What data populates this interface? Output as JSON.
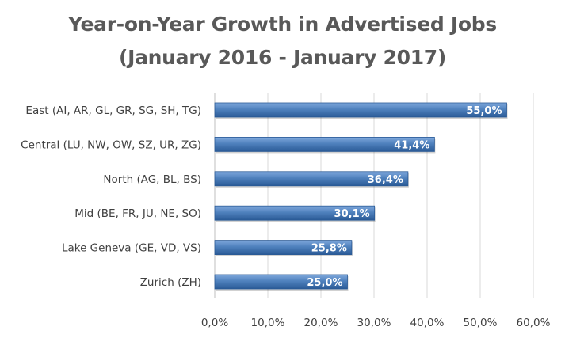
{
  "chart_data": {
    "type": "bar",
    "orientation": "horizontal",
    "title": "Year-on-Year Growth in Advertised Jobs",
    "subtitle": "(January 2016 - January 2017)",
    "categories": [
      "East (AI, AR, GL, GR, SG, SH, TG)",
      "Central (LU, NW, OW, SZ, UR, ZG)",
      "North (AG, BL, BS)",
      "Mid (BE, FR, JU, NE, SO)",
      "Lake Geneva (GE, VD, VS)",
      "Zurich (ZH)"
    ],
    "values": [
      55.0,
      41.4,
      36.4,
      30.1,
      25.8,
      25.0
    ],
    "data_labels": [
      "55,0%",
      "41,4%",
      "36,4%",
      "30,1%",
      "25,8%",
      "25,0%"
    ],
    "x_ticks": [
      "0,0%",
      "10,0%",
      "20,0%",
      "30,0%",
      "40,0%",
      "50,0%",
      "60,0%"
    ],
    "xlim": [
      0,
      60
    ],
    "xlabel": "",
    "ylabel": "",
    "grid": "vertical",
    "legend": "none",
    "colors": {
      "bar_light": "#7fa8dc",
      "bar_mid": "#4f81bd",
      "bar_dark": "#2a5a96",
      "grid": "#d9d9d9",
      "text": "#404040",
      "title": "#595959"
    }
  }
}
